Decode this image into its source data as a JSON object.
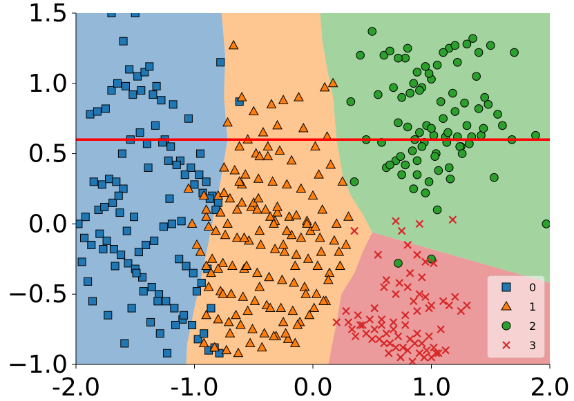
{
  "chart_data": {
    "type": "scatter",
    "title": "",
    "xlabel": "",
    "ylabel": "",
    "xlim": [
      -2.0,
      2.0
    ],
    "ylim": [
      -1.0,
      1.5
    ],
    "x_ticks": [
      -2.0,
      -1.0,
      0.0,
      1.0,
      2.0
    ],
    "x_tick_labels": [
      "-2.0",
      "-1.0",
      "0.0",
      "1.0",
      "2.0"
    ],
    "y_ticks": [
      -1.0,
      -0.5,
      0.0,
      0.5,
      1.0,
      1.5
    ],
    "y_tick_labels": [
      "−1.0",
      "−0.5",
      "0.0",
      "0.5",
      "1.0",
      "1.5"
    ],
    "grid": false,
    "legend_position": "bottom-right",
    "hline": {
      "y": 0.6,
      "color": "#ff0000"
    },
    "regions": [
      {
        "class": "0",
        "color": "#94b8d8",
        "polygon": [
          [
            -2.0,
            1.5
          ],
          [
            -0.77,
            1.5
          ],
          [
            -0.74,
            1.2
          ],
          [
            -0.75,
            0.9
          ],
          [
            -0.72,
            0.6
          ],
          [
            -0.78,
            0.3
          ],
          [
            -0.85,
            0.0
          ],
          [
            -0.92,
            -0.3
          ],
          [
            -1.0,
            -0.6
          ],
          [
            -1.06,
            -0.85
          ],
          [
            -1.07,
            -1.0
          ],
          [
            -2.0,
            -1.0
          ]
        ]
      },
      {
        "class": "1",
        "color": "#fec690",
        "polygon": [
          [
            -0.77,
            1.5
          ],
          [
            0.06,
            1.5
          ],
          [
            0.08,
            1.3
          ],
          [
            0.12,
            1.1
          ],
          [
            0.17,
            0.9
          ],
          [
            0.2,
            0.6
          ],
          [
            0.25,
            0.35
          ],
          [
            0.32,
            0.2
          ],
          [
            0.42,
            0.07
          ],
          [
            0.5,
            -0.06
          ],
          [
            0.42,
            -0.2
          ],
          [
            0.35,
            -0.35
          ],
          [
            0.24,
            -0.5
          ],
          [
            0.2,
            -0.7
          ],
          [
            0.16,
            -0.87
          ],
          [
            0.13,
            -1.0
          ],
          [
            -1.07,
            -1.0
          ],
          [
            -1.06,
            -0.85
          ],
          [
            -1.0,
            -0.6
          ],
          [
            -0.92,
            -0.3
          ],
          [
            -0.85,
            0.0
          ],
          [
            -0.78,
            0.3
          ],
          [
            -0.72,
            0.6
          ],
          [
            -0.75,
            0.9
          ],
          [
            -0.74,
            1.2
          ]
        ]
      },
      {
        "class": "2",
        "color": "#a3d39e",
        "polygon": [
          [
            0.06,
            1.5
          ],
          [
            2.0,
            1.5
          ],
          [
            2.0,
            -0.42
          ],
          [
            0.5,
            -0.06
          ],
          [
            0.42,
            0.07
          ],
          [
            0.32,
            0.2
          ],
          [
            0.25,
            0.35
          ],
          [
            0.2,
            0.6
          ],
          [
            0.17,
            0.9
          ],
          [
            0.12,
            1.1
          ],
          [
            0.08,
            1.3
          ]
        ]
      },
      {
        "class": "3",
        "color": "#eb9b9b",
        "polygon": [
          [
            0.5,
            -0.06
          ],
          [
            2.0,
            -0.42
          ],
          [
            2.0,
            -1.0
          ],
          [
            0.13,
            -1.0
          ],
          [
            0.16,
            -0.87
          ],
          [
            0.2,
            -0.7
          ],
          [
            0.24,
            -0.5
          ],
          [
            0.35,
            -0.35
          ],
          [
            0.42,
            -0.2
          ]
        ]
      }
    ],
    "series": [
      {
        "name": "0",
        "marker": "square",
        "color": "#1f77b4",
        "x": [
          -1.7,
          -1.5,
          -1.6,
          -1.55,
          -1.48,
          -1.45,
          -1.35,
          -1.28,
          -1.18,
          -1.05,
          -0.95,
          -0.78,
          -1.88,
          -1.82,
          -1.75,
          -1.7,
          -1.65,
          -1.58,
          -1.52,
          -1.42,
          -1.38,
          -1.32,
          -1.25,
          -1.2,
          -1.12,
          -1.03,
          -0.96,
          -0.9,
          -0.85,
          -0.8,
          -1.92,
          -1.85,
          -1.78,
          -1.72,
          -1.66,
          -1.6,
          -1.54,
          -1.46,
          -1.4,
          -1.33,
          -1.27,
          -1.22,
          -1.15,
          -1.08,
          -1.0,
          -0.93,
          -0.87,
          -0.82,
          -1.95,
          -1.9,
          -1.86,
          -1.8,
          -1.74,
          -1.68,
          -1.62,
          -1.56,
          -1.5,
          -1.44,
          -1.36,
          -1.3,
          -1.24,
          -1.17,
          -1.1,
          -1.02,
          -0.97,
          -0.92,
          -0.88,
          -0.83,
          -0.79,
          -1.98,
          -1.93,
          -1.87,
          -1.81,
          -1.76,
          -1.69,
          -1.63,
          -1.57,
          -1.51,
          -1.47,
          -1.41,
          -1.34,
          -1.26,
          -1.19,
          -1.13,
          -1.07,
          -1.01,
          -0.98,
          -0.94,
          -0.89,
          -0.86,
          -1.77,
          -1.67,
          -1.53,
          -1.43,
          -1.31,
          -1.61,
          -1.39,
          -1.21,
          -1.11,
          -1.64,
          -0.62,
          -1.73,
          -1.49,
          -1.37,
          -1.29,
          -1.59,
          -1.23,
          -1.16,
          -1.09
        ],
        "y": [
          1.5,
          1.5,
          1.3,
          1.1,
          1.05,
          0.95,
          0.92,
          0.88,
          0.85,
          0.75,
          0.5,
          1.15,
          0.78,
          0.8,
          0.82,
          0.95,
          1.0,
          0.98,
          0.92,
          1.08,
          1.12,
          0.98,
          0.6,
          0.55,
          0.45,
          0.4,
          0.35,
          0.3,
          0.2,
          0.15,
          0.05,
          0.3,
          0.28,
          0.32,
          0.3,
          0.25,
          0.6,
          0.65,
          0.57,
          0.7,
          0.58,
          0.45,
          0.42,
          0.35,
          0.28,
          0.22,
          0.18,
          0.1,
          -0.27,
          -0.41,
          -0.55,
          -0.07,
          -0.12,
          -0.18,
          -0.22,
          -0.28,
          -0.32,
          -0.38,
          -0.45,
          -0.5,
          -0.55,
          -0.6,
          -0.68,
          -0.72,
          -0.82,
          -0.78,
          -0.9,
          -0.88,
          -0.92,
          0.0,
          -0.1,
          -0.15,
          0.1,
          0.12,
          0.15,
          0.08,
          -0.05,
          0.05,
          -0.2,
          -0.15,
          -0.12,
          -0.02,
          0.0,
          -0.25,
          -0.3,
          -0.35,
          -0.48,
          -0.42,
          -0.32,
          -0.6,
          -0.18,
          -0.3,
          -0.6,
          -0.48,
          -0.55,
          0.5,
          0.4,
          0.18,
          0.02,
          0.2,
          0.87,
          -0.65,
          -0.35,
          -0.7,
          -0.78,
          -0.85,
          -0.92,
          -0.72,
          -0.65
        ]
      },
      {
        "name": "1",
        "marker": "triangle",
        "color": "#ff7f0e",
        "x": [
          -0.67,
          -0.6,
          -0.5,
          -0.35,
          -0.25,
          -0.12,
          0.1,
          -0.3,
          -0.42,
          -0.55,
          -0.72,
          -0.62,
          -0.48,
          -0.38,
          -0.28,
          -0.18,
          -0.08,
          0.02,
          0.12,
          -0.75,
          -0.66,
          -0.57,
          -0.46,
          -0.34,
          -0.22,
          -0.1,
          0.05,
          0.15,
          0.25,
          -0.8,
          -0.7,
          -0.6,
          -0.52,
          -0.4,
          -0.3,
          -0.2,
          -0.05,
          0.08,
          0.2,
          0.3,
          -0.82,
          -0.74,
          -0.64,
          -0.54,
          -0.44,
          -0.32,
          -0.24,
          -0.14,
          -0.02,
          0.06,
          0.18,
          0.28,
          -0.85,
          -0.76,
          -0.68,
          -0.58,
          -0.47,
          -0.37,
          -0.26,
          -0.16,
          -0.04,
          0.04,
          0.14,
          0.22,
          -0.88,
          -0.78,
          -0.69,
          -0.59,
          -0.49,
          -0.39,
          -0.27,
          -0.17,
          -0.07,
          0.03,
          0.13,
          0.23,
          -0.9,
          -0.8,
          -0.71,
          -0.61,
          -0.51,
          -0.41,
          -0.31,
          -0.21,
          -0.11,
          0.01,
          0.11,
          -0.92,
          -0.83,
          -0.73,
          -0.63,
          -0.53,
          -0.43,
          -0.33,
          -0.23,
          -0.13,
          -0.03,
          0.09,
          -0.95,
          -0.86,
          -0.76,
          -0.65,
          -0.56,
          -0.45,
          -0.36,
          -0.25,
          -0.15,
          -0.06,
          -0.98,
          -0.88,
          -0.72,
          -0.58,
          -0.45,
          -0.32,
          -0.18,
          -0.05,
          0.07,
          -1.02,
          -0.9,
          -0.78,
          -0.64,
          -0.5,
          -0.36,
          -0.22,
          -0.1,
          -1.05,
          -0.92,
          -0.75,
          -0.6,
          -0.46,
          -0.3,
          -0.14,
          0.02,
          -0.9,
          -0.62,
          -0.45,
          0.17,
          -0.38,
          -0.55,
          -0.25,
          -0.7,
          -0.15,
          0.0,
          -0.47,
          -0.33
        ],
        "y": [
          1.27,
          0.9,
          0.8,
          0.85,
          0.88,
          0.9,
          0.97,
          0.7,
          0.65,
          0.6,
          0.72,
          0.55,
          0.5,
          0.48,
          0.52,
          0.45,
          0.68,
          0.55,
          0.62,
          0.4,
          0.38,
          0.35,
          0.32,
          0.3,
          0.28,
          0.25,
          0.35,
          0.42,
          0.3,
          0.2,
          0.18,
          0.15,
          0.12,
          0.1,
          0.08,
          0.05,
          0.02,
          0.1,
          0.0,
          0.05,
          -0.05,
          -0.08,
          -0.1,
          -0.12,
          -0.15,
          -0.18,
          -0.2,
          -0.22,
          -0.05,
          -0.1,
          -0.12,
          -0.15,
          -0.25,
          -0.28,
          -0.3,
          -0.32,
          -0.35,
          -0.38,
          -0.4,
          -0.42,
          -0.25,
          -0.3,
          -0.35,
          -0.2,
          -0.45,
          -0.48,
          -0.5,
          -0.52,
          -0.55,
          -0.58,
          -0.6,
          -0.62,
          -0.45,
          -0.5,
          -0.4,
          -0.3,
          -0.65,
          -0.68,
          -0.7,
          -0.72,
          -0.75,
          -0.78,
          -0.8,
          -0.82,
          -0.7,
          -0.6,
          -0.55,
          -0.85,
          -0.88,
          -0.9,
          -0.92,
          -0.85,
          -0.88,
          -0.8,
          -0.78,
          -0.72,
          -0.65,
          -0.55,
          -0.2,
          -0.35,
          -0.5,
          -0.65,
          -0.3,
          -0.45,
          -0.6,
          -0.15,
          -0.3,
          -0.5,
          -0.15,
          -0.02,
          0.0,
          -0.1,
          -0.05,
          0.02,
          -0.08,
          0.0,
          -0.2,
          0.0,
          0.05,
          0.08,
          0.1,
          0.15,
          0.05,
          -0.05,
          -0.1,
          0.25,
          0.2,
          0.22,
          0.28,
          0.18,
          0.12,
          0.06,
          -0.02,
          0.1,
          0.3,
          0.48,
          1.0,
          0.55,
          -0.62,
          -0.7,
          -0.78,
          -0.85,
          0.2,
          0.1,
          0.0
        ],
        "extra_x": [
          -0.9,
          -0.8
        ],
        "extra_y": [
          -0.3,
          -0.32
        ]
      },
      {
        "name": "2",
        "marker": "circle",
        "color": "#2ca02c",
        "x": [
          0.4,
          0.5,
          0.32,
          0.6,
          0.78,
          0.95,
          0.85,
          0.92,
          1.05,
          1.15,
          1.2,
          1.35,
          0.65,
          0.72,
          0.8,
          0.88,
          1.0,
          1.1,
          1.22,
          1.3,
          1.4,
          1.5,
          1.7,
          0.55,
          0.68,
          0.75,
          0.82,
          0.9,
          0.98,
          1.08,
          1.18,
          1.28,
          1.38,
          1.45,
          0.35,
          0.45,
          0.58,
          0.7,
          0.86,
          0.96,
          1.04,
          1.12,
          1.25,
          1.32,
          1.42,
          1.48,
          0.62,
          0.74,
          0.84,
          0.94,
          1.02,
          1.14,
          1.24,
          1.34,
          1.44,
          1.56,
          0.72,
          0.8,
          0.9,
          1.0,
          1.1,
          1.2,
          1.3,
          1.4,
          1.6,
          1.88,
          0.75,
          0.88,
          0.98,
          1.06,
          1.16,
          1.26,
          0.78,
          0.92,
          1.03,
          1.13,
          1.22,
          1.97,
          1.53,
          0.85,
          0.95,
          1.05,
          0.65,
          0.88,
          1.15,
          0.72,
          1.0
        ],
        "y": [
          1.2,
          1.37,
          0.87,
          1.2,
          1.18,
          1.12,
          1.0,
          0.97,
          1.13,
          1.25,
          1.27,
          1.32,
          1.23,
          1.18,
          1.25,
          1.08,
          1.03,
          1.22,
          1.15,
          1.28,
          1.22,
          1.27,
          1.22,
          0.92,
          0.97,
          0.9,
          0.93,
          0.95,
          1.07,
          0.87,
          0.93,
          0.86,
          1.05,
          0.9,
          0.3,
          0.6,
          0.58,
          0.45,
          0.6,
          0.7,
          0.5,
          0.62,
          0.55,
          0.57,
          0.63,
          0.85,
          0.4,
          0.48,
          0.52,
          0.58,
          0.63,
          0.65,
          0.55,
          0.62,
          0.68,
          0.78,
          0.72,
          0.69,
          0.65,
          0.68,
          0.75,
          0.8,
          0.7,
          0.82,
          0.7,
          0.63,
          0.35,
          0.45,
          0.3,
          0.38,
          0.32,
          0.5,
          0.42,
          0.55,
          0.48,
          0.58,
          0.62,
          0.0,
          0.33,
          0.25,
          0.22,
          0.1,
          0.42,
          0.35,
          0.4,
          -0.28,
          -0.25
        ],
        "extra_x": [
          1.68
        ],
        "extra_y": [
          0.6
        ]
      },
      {
        "name": "3",
        "marker": "x",
        "color": "#d62728",
        "x": [
          0.35,
          0.2,
          0.55,
          0.75,
          0.88,
          0.95,
          1.02,
          1.18,
          0.6,
          0.7,
          0.8,
          0.9,
          1.0,
          1.1,
          1.2,
          1.3,
          0.28,
          0.38,
          0.48,
          0.58,
          0.68,
          0.78,
          0.88,
          0.98,
          1.08,
          0.3,
          0.42,
          0.52,
          0.62,
          0.72,
          0.82,
          0.92,
          1.02,
          1.12,
          0.33,
          0.45,
          0.56,
          0.65,
          0.76,
          0.86,
          0.96,
          1.06,
          0.36,
          0.5,
          0.6,
          0.7,
          0.8,
          0.9,
          1.0,
          0.64,
          0.74,
          0.84,
          0.94,
          1.04,
          0.4,
          0.58,
          0.68,
          0.78,
          0.88,
          0.98,
          1.15,
          1.25,
          0.52,
          0.85,
          0.95,
          0.82,
          0.92,
          0.62,
          0.73,
          0.7,
          0.8,
          0.9
        ],
        "y": [
          -0.05,
          -0.7,
          -0.22,
          -0.05,
          -0.22,
          -0.27,
          -0.28,
          0.03,
          -0.45,
          -0.5,
          -0.45,
          -0.5,
          -0.58,
          -0.55,
          -0.52,
          -0.58,
          -0.62,
          -0.65,
          -0.68,
          -0.72,
          -0.75,
          -0.72,
          -0.78,
          -0.8,
          -0.75,
          -0.7,
          -0.72,
          -0.75,
          -0.78,
          -0.8,
          -0.82,
          -0.85,
          -0.88,
          -0.9,
          -0.75,
          -0.78,
          -0.82,
          -0.85,
          -0.88,
          -0.85,
          -0.9,
          -0.92,
          -0.8,
          -0.82,
          -0.85,
          -0.88,
          -0.9,
          -0.92,
          -0.95,
          -0.92,
          -0.95,
          -0.98,
          -0.95,
          -0.92,
          -0.72,
          -0.68,
          -0.7,
          -0.65,
          -0.62,
          -0.6,
          -0.58,
          -0.62,
          -0.6,
          -0.55,
          -0.52,
          -0.35,
          -0.38,
          -0.4,
          -0.42,
          0.02,
          -0.15,
          0.0
        ]
      }
    ]
  }
}
